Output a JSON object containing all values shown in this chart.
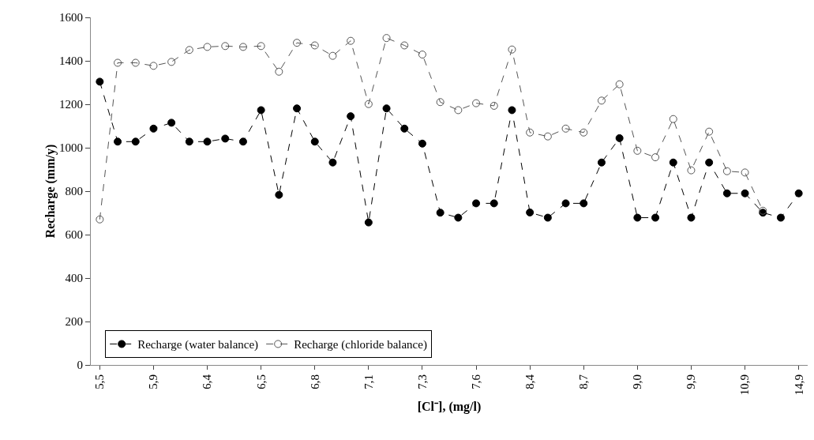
{
  "chart_data": {
    "type": "line",
    "xlabel": "[Cl⁻], (mg/l)",
    "ylabel": "Recharge (mm/y)",
    "categories": [
      "5,5",
      null,
      null,
      "5,9",
      null,
      null,
      "6,4",
      null,
      null,
      "6,5",
      null,
      null,
      "6,8",
      null,
      null,
      "7,1",
      null,
      null,
      "7,3",
      null,
      null,
      "7,6",
      null,
      null,
      "8,4",
      null,
      null,
      "8,7",
      null,
      null,
      "9,0",
      null,
      null,
      "9,9",
      null,
      null,
      "10,9",
      null,
      null,
      "14,9"
    ],
    "series": [
      {
        "name": "Recharge (water balance)",
        "color": "#000000",
        "marker": "circle",
        "values": [
          1304,
          1028,
          1028,
          1088,
          1115,
          1028,
          1028,
          1042,
          1028,
          1173,
          783,
          1181,
          1028,
          932,
          1145,
          656,
          1181,
          1088,
          1019,
          701,
          678,
          744,
          744,
          1173,
          702,
          678,
          744,
          744,
          932,
          1044,
          678,
          678,
          932,
          678,
          932,
          790,
          790,
          701,
          678,
          790
        ]
      },
      {
        "name": "Recharge (chloride balance)",
        "color": "#555555",
        "marker": "circle-open",
        "values": [
          670,
          1391,
          1391,
          1377,
          1395,
          1450,
          1464,
          1468,
          1464,
          1468,
          1350,
          1483,
          1471,
          1423,
          1492,
          1201,
          1505,
          1471,
          1429,
          1210,
          1173,
          1205,
          1193,
          1452,
          1070,
          1052,
          1088,
          1070,
          1217,
          1292,
          986,
          956,
          1132,
          896,
          1074,
          892,
          886,
          710,
          null,
          null
        ]
      }
    ],
    "ylim": [
      0,
      1600
    ],
    "yticks": [
      0,
      200,
      400,
      600,
      800,
      1000,
      1200,
      1400,
      1600
    ],
    "grid": false,
    "legend": "bottom left",
    "line_style": "dashed"
  }
}
